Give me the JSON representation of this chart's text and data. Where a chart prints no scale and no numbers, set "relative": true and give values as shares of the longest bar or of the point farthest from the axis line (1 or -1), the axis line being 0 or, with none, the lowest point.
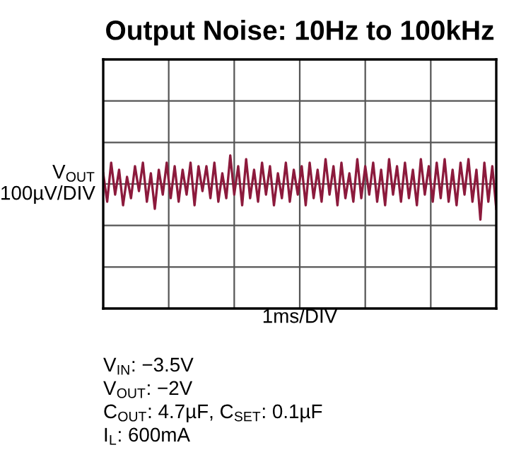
{
  "chart_data": {
    "type": "line",
    "title": "Output Noise: 10Hz to 100kHz",
    "ylabel": "V$_{OUT}$\n100µV/DIV",
    "xlabel": "1ms/DIV",
    "relative": true,
    "grid": true,
    "legend": false,
    "annotations": [
      "V$_{IN}$: −3.5V",
      "V$_{OUT}$: −2V",
      "C$_{OUT}$: 4.7µF, C$_{SET}$: 0.1µF",
      "I$_{L}$: 600mA"
    ],
    "categories": [
      null,
      null,
      null,
      null,
      null,
      null,
      null,
      null,
      null,
      null,
      null,
      null,
      null,
      null,
      null,
      null,
      null,
      null,
      null,
      null,
      null,
      null,
      null,
      null,
      null,
      null,
      null,
      null,
      null,
      null,
      null,
      null,
      null,
      null,
      null,
      null,
      null,
      null,
      null,
      null,
      null,
      null,
      null,
      null,
      null,
      null,
      null,
      null,
      null,
      null,
      null,
      null,
      null,
      null,
      null,
      null,
      null,
      null,
      null,
      null,
      null,
      null,
      null,
      null,
      null,
      null,
      null,
      null,
      null,
      null,
      null,
      null,
      null,
      null,
      null,
      null,
      null,
      null,
      null,
      null,
      null,
      null,
      null,
      null,
      null,
      null,
      null,
      null,
      null,
      null,
      null,
      null,
      null,
      null,
      null,
      null,
      null,
      null,
      null,
      null
    ],
    "series": [
      {
        "color": "#8c1a3c",
        "values": [
          0.3,
          -0.5,
          0.6,
          -0.3,
          0.4,
          -0.6,
          0.2,
          -0.4,
          0.5,
          -0.2,
          0.6,
          -0.5,
          0.3,
          -0.7,
          0.4,
          -0.3,
          0.6,
          -0.4,
          0.5,
          -0.5,
          0.4,
          -0.3,
          0.6,
          -0.6,
          0.5,
          -0.2,
          0.5,
          -0.4,
          0.6,
          -0.5,
          0.3,
          -0.4,
          0.8,
          -0.3,
          0.5,
          -0.6,
          0.7,
          -0.4,
          0.4,
          -0.5,
          0.6,
          -0.3,
          0.5,
          -0.6,
          0.3,
          -0.4,
          0.6,
          -0.5,
          0.4,
          -0.3,
          0.5,
          -0.6,
          0.6,
          -0.4,
          0.4,
          -0.5,
          0.7,
          -0.3,
          0.5,
          -0.6,
          0.6,
          -0.4,
          0.3,
          -0.5,
          0.7,
          -0.4,
          0.5,
          -0.3,
          0.6,
          -0.5,
          0.4,
          -0.6,
          0.7,
          -0.3,
          0.5,
          -0.5,
          0.6,
          -0.4,
          0.4,
          -0.6,
          0.7,
          -0.3,
          0.5,
          -0.5,
          0.6,
          -0.4,
          0.7,
          -0.5,
          0.4,
          -0.6,
          0.6,
          -0.3,
          0.7,
          -0.5,
          0.4,
          -1.0,
          0.6,
          -0.5,
          0.5,
          -0.7
        ]
      }
    ]
  }
}
